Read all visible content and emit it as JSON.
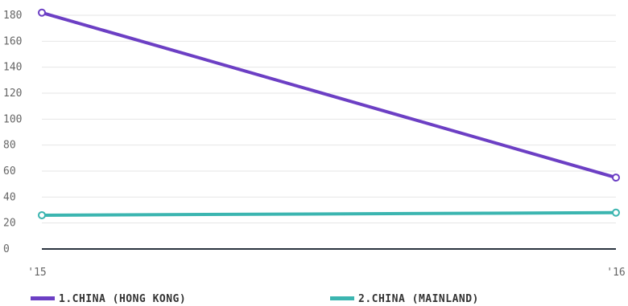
{
  "chart_data": {
    "type": "line",
    "title": "",
    "xlabel": "",
    "ylabel": "",
    "categories": [
      "'15",
      "'16"
    ],
    "ylim": [
      0,
      180
    ],
    "yticks": [
      0,
      20,
      40,
      60,
      80,
      100,
      120,
      140,
      160,
      180
    ],
    "grid": true,
    "legend_position": "bottom",
    "series": [
      {
        "name": "1.CHINA (HONG KONG)",
        "values": [
          182,
          55
        ],
        "color": "#6c3fc4"
      },
      {
        "name": "2.CHINA (MAINLAND)",
        "values": [
          26,
          28
        ],
        "color": "#3bb5b0"
      }
    ]
  }
}
